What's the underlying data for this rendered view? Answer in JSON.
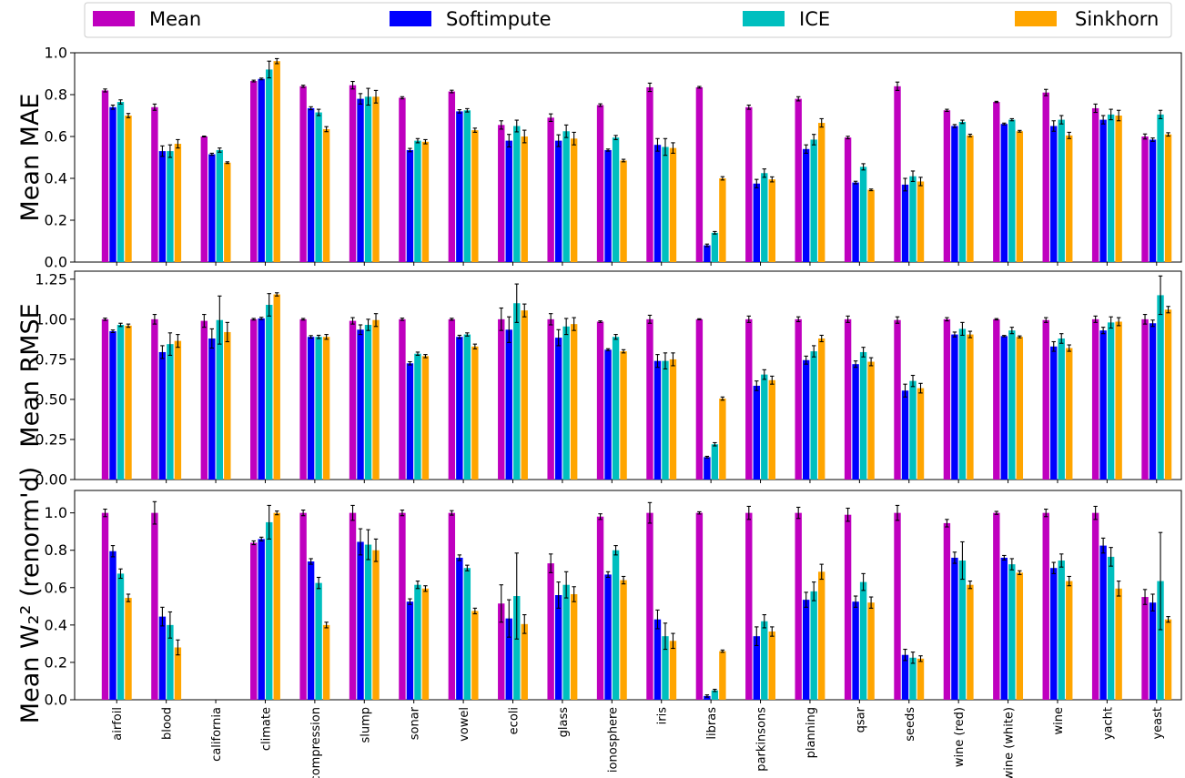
{
  "legend": [
    {
      "name": "Mean",
      "color": "#bf00bf"
    },
    {
      "name": "Softimpute",
      "color": "#0000ff"
    },
    {
      "name": "ICE",
      "color": "#00bfbf"
    },
    {
      "name": "Sinkhorn",
      "color": "#ffa500"
    }
  ],
  "categories": [
    "airfoil",
    "blood",
    "california",
    "climate",
    "compression",
    "slump",
    "sonar",
    "vowel",
    "ecoli",
    "glass",
    "ionosphere",
    "iris",
    "libras",
    "parkinsons",
    "planning",
    "qsar",
    "seeds",
    "wine (red)",
    "wine (white)",
    "wine",
    "yacht",
    "yeast"
  ],
  "chart_data": [
    {
      "type": "bar",
      "ylabel": "Mean MAE",
      "ylim": [
        0,
        1.0
      ],
      "yticks": [
        "0.0",
        "0.2",
        "0.4",
        "0.6",
        "0.8",
        "1.0"
      ],
      "yticks_values": [
        0,
        0.2,
        0.4,
        0.6,
        0.8,
        1.0
      ],
      "series": [
        {
          "name": "Mean",
          "values": [
            0.82,
            0.74,
            0.6,
            0.865,
            0.84,
            0.845,
            0.785,
            0.815,
            0.655,
            0.69,
            0.75,
            0.835,
            0.835,
            0.74,
            0.78,
            0.595,
            0.84,
            0.725,
            0.765,
            0.81,
            0.735,
            0.6
          ],
          "errors": [
            0.007,
            0.015,
            0.002,
            0.004,
            0.005,
            0.018,
            0.005,
            0.006,
            0.02,
            0.018,
            0.006,
            0.02,
            0.004,
            0.01,
            0.01,
            0.006,
            0.02,
            0.005,
            0.003,
            0.015,
            0.02,
            0.012
          ]
        },
        {
          "name": "Softimpute",
          "values": [
            0.74,
            0.53,
            0.515,
            0.875,
            0.735,
            0.78,
            0.535,
            0.72,
            0.58,
            0.58,
            0.535,
            0.56,
            0.08,
            0.375,
            0.54,
            0.38,
            0.37,
            0.65,
            0.66,
            0.65,
            0.68,
            0.585
          ],
          "errors": [
            0.01,
            0.025,
            0.005,
            0.004,
            0.007,
            0.025,
            0.008,
            0.008,
            0.03,
            0.028,
            0.005,
            0.03,
            0.006,
            0.02,
            0.02,
            0.006,
            0.03,
            0.007,
            0.004,
            0.025,
            0.02,
            0.008
          ]
        },
        {
          "name": "ICE",
          "values": [
            0.765,
            0.53,
            0.535,
            0.92,
            0.715,
            0.79,
            0.58,
            0.725,
            0.65,
            0.625,
            0.595,
            0.55,
            0.14,
            0.425,
            0.585,
            0.455,
            0.41,
            0.67,
            0.68,
            0.68,
            0.705,
            0.705
          ],
          "errors": [
            0.01,
            0.03,
            0.01,
            0.04,
            0.015,
            0.04,
            0.01,
            0.008,
            0.028,
            0.03,
            0.01,
            0.04,
            0.006,
            0.02,
            0.025,
            0.015,
            0.025,
            0.008,
            0.005,
            0.02,
            0.025,
            0.02
          ]
        },
        {
          "name": "Sinkhorn",
          "values": [
            0.7,
            0.565,
            0.475,
            0.96,
            0.635,
            0.79,
            0.575,
            0.63,
            0.6,
            0.59,
            0.485,
            0.545,
            0.4,
            0.395,
            0.665,
            0.345,
            0.385,
            0.605,
            0.625,
            0.605,
            0.7,
            0.61
          ],
          "errors": [
            0.01,
            0.02,
            0.004,
            0.012,
            0.012,
            0.03,
            0.01,
            0.01,
            0.03,
            0.03,
            0.006,
            0.025,
            0.008,
            0.012,
            0.02,
            0.004,
            0.02,
            0.006,
            0.004,
            0.015,
            0.025,
            0.008
          ]
        }
      ]
    },
    {
      "type": "bar",
      "ylabel": "Mean RMSE",
      "ylim": [
        0,
        1.3
      ],
      "yticks": [
        "0.00",
        "0.25",
        "0.50",
        "0.75",
        "1.00",
        "1.25"
      ],
      "yticks_values": [
        0,
        0.25,
        0.5,
        0.75,
        1.0,
        1.25
      ],
      "series": [
        {
          "name": "Mean",
          "values": [
            1.0,
            1.0,
            0.99,
            1.0,
            1.0,
            0.99,
            1.0,
            1.0,
            1.0,
            1.0,
            0.985,
            1.0,
            1.0,
            1.0,
            1.0,
            1.0,
            0.995,
            1.0,
            1.0,
            0.995,
            1.0,
            1.0
          ],
          "errors": [
            0.007,
            0.03,
            0.04,
            0.005,
            0.005,
            0.02,
            0.007,
            0.006,
            0.07,
            0.035,
            0.005,
            0.025,
            0.003,
            0.02,
            0.015,
            0.02,
            0.02,
            0.01,
            0.004,
            0.015,
            0.02,
            0.03
          ]
        },
        {
          "name": "Softimpute",
          "values": [
            0.925,
            0.795,
            0.88,
            1.005,
            0.89,
            0.935,
            0.725,
            0.89,
            0.935,
            0.885,
            0.81,
            0.74,
            0.14,
            0.585,
            0.745,
            0.72,
            0.555,
            0.905,
            0.895,
            0.83,
            0.93,
            0.975
          ],
          "errors": [
            0.008,
            0.04,
            0.06,
            0.007,
            0.008,
            0.03,
            0.01,
            0.01,
            0.08,
            0.05,
            0.006,
            0.04,
            0.005,
            0.03,
            0.025,
            0.02,
            0.04,
            0.015,
            0.004,
            0.03,
            0.02,
            0.02
          ]
        },
        {
          "name": "ICE",
          "values": [
            0.965,
            0.845,
            0.995,
            1.09,
            0.89,
            0.965,
            0.785,
            0.905,
            1.1,
            0.955,
            0.89,
            0.74,
            0.22,
            0.655,
            0.8,
            0.795,
            0.615,
            0.94,
            0.93,
            0.88,
            0.98,
            1.15
          ],
          "errors": [
            0.01,
            0.07,
            0.15,
            0.07,
            0.01,
            0.035,
            0.01,
            0.01,
            0.12,
            0.05,
            0.015,
            0.05,
            0.01,
            0.03,
            0.035,
            0.03,
            0.035,
            0.04,
            0.02,
            0.03,
            0.035,
            0.12
          ]
        },
        {
          "name": "Sinkhorn",
          "values": [
            0.96,
            0.865,
            0.92,
            1.155,
            0.89,
            0.995,
            0.77,
            0.83,
            1.055,
            0.97,
            0.8,
            0.75,
            0.505,
            0.62,
            0.88,
            0.735,
            0.57,
            0.905,
            0.89,
            0.82,
            0.985,
            1.06
          ],
          "errors": [
            0.01,
            0.04,
            0.06,
            0.01,
            0.015,
            0.04,
            0.01,
            0.015,
            0.04,
            0.04,
            0.01,
            0.04,
            0.01,
            0.025,
            0.02,
            0.025,
            0.03,
            0.02,
            0.006,
            0.02,
            0.025,
            0.02
          ]
        }
      ]
    },
    {
      "type": "bar",
      "ylabel": "Mean W₂² (renorm'd)",
      "ylim": [
        0,
        1.12
      ],
      "yticks": [
        "0.0",
        "0.2",
        "0.4",
        "0.6",
        "0.8",
        "1.0"
      ],
      "yticks_values": [
        0,
        0.2,
        0.4,
        0.6,
        0.8,
        1.0
      ],
      "series": [
        {
          "name": "Mean",
          "values": [
            1.0,
            1.0,
            null,
            0.84,
            1.0,
            1.0,
            1.0,
            1.0,
            0.515,
            0.73,
            0.98,
            1.0,
            1.0,
            1.0,
            1.0,
            0.99,
            1.0,
            0.945,
            1.0,
            1.0,
            1.0,
            0.55
          ],
          "errors": [
            0.02,
            0.06,
            null,
            0.01,
            0.015,
            0.04,
            0.015,
            0.012,
            0.1,
            0.05,
            0.015,
            0.055,
            0.006,
            0.035,
            0.03,
            0.035,
            0.04,
            0.02,
            0.008,
            0.02,
            0.035,
            0.04
          ]
        },
        {
          "name": "Softimpute",
          "values": [
            0.795,
            0.445,
            null,
            0.86,
            0.74,
            0.845,
            0.525,
            0.76,
            0.435,
            0.56,
            0.67,
            0.43,
            0.02,
            0.34,
            0.535,
            0.525,
            0.24,
            0.76,
            0.76,
            0.705,
            0.825,
            0.52
          ],
          "errors": [
            0.03,
            0.05,
            null,
            0.01,
            0.015,
            0.07,
            0.015,
            0.015,
            0.1,
            0.07,
            0.015,
            0.05,
            0.006,
            0.05,
            0.04,
            0.03,
            0.03,
            0.03,
            0.012,
            0.03,
            0.04,
            0.045
          ]
        },
        {
          "name": "ICE",
          "values": [
            0.675,
            0.4,
            null,
            0.95,
            0.625,
            0.83,
            0.615,
            0.705,
            0.555,
            0.615,
            0.8,
            0.34,
            0.05,
            0.42,
            0.58,
            0.63,
            0.225,
            0.745,
            0.725,
            0.745,
            0.765,
            0.635
          ],
          "errors": [
            0.025,
            0.07,
            null,
            0.09,
            0.03,
            0.08,
            0.02,
            0.015,
            0.23,
            0.07,
            0.025,
            0.07,
            0.006,
            0.035,
            0.05,
            0.045,
            0.03,
            0.1,
            0.03,
            0.035,
            0.05,
            0.26
          ]
        },
        {
          "name": "Sinkhorn",
          "values": [
            0.545,
            0.28,
            null,
            1.0,
            0.4,
            0.8,
            0.595,
            0.475,
            0.405,
            0.565,
            0.64,
            0.315,
            0.26,
            0.365,
            0.685,
            0.52,
            0.22,
            0.615,
            0.68,
            0.635,
            0.595,
            0.43
          ],
          "errors": [
            0.02,
            0.04,
            null,
            0.01,
            0.015,
            0.06,
            0.015,
            0.015,
            0.05,
            0.04,
            0.02,
            0.04,
            0.006,
            0.025,
            0.04,
            0.03,
            0.015,
            0.02,
            0.01,
            0.025,
            0.04,
            0.015
          ]
        }
      ]
    }
  ]
}
